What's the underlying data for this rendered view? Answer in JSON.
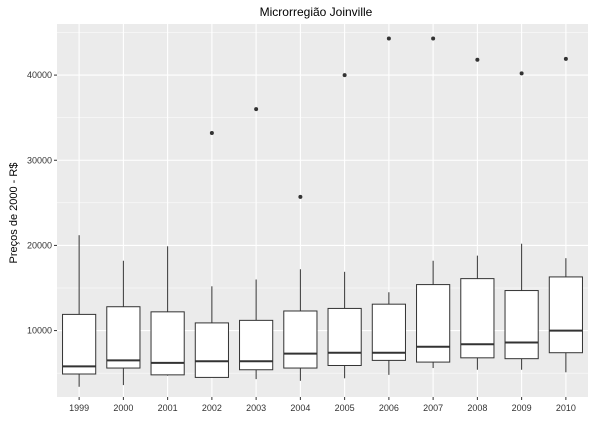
{
  "chart_data": {
    "type": "box",
    "title": "Microrregião  Joinville",
    "xlabel": "",
    "ylabel": "Preços de 2000 - R$",
    "ylim": [
      2200,
      46000
    ],
    "yticks": [
      10000,
      20000,
      30000,
      40000
    ],
    "grid": true,
    "panel_background": "#ebebeb",
    "grid_color": "#ffffff",
    "box_fill": "#ffffff",
    "line_color": "#333333",
    "categories": [
      "1999",
      "2000",
      "2001",
      "2002",
      "2003",
      "2004",
      "2005",
      "2006",
      "2007",
      "2008",
      "2009",
      "2010"
    ],
    "boxes": [
      {
        "lower_whisker": 3400,
        "q1": 4900,
        "median": 5800,
        "q3": 11900,
        "upper_whisker": 21200,
        "outliers": []
      },
      {
        "lower_whisker": 3600,
        "q1": 5600,
        "median": 6500,
        "q3": 12800,
        "upper_whisker": 18200,
        "outliers": []
      },
      {
        "lower_whisker": 4700,
        "q1": 4800,
        "median": 6200,
        "q3": 12200,
        "upper_whisker": 19900,
        "outliers": []
      },
      {
        "lower_whisker": 4500,
        "q1": 4500,
        "median": 6400,
        "q3": 10900,
        "upper_whisker": 15200,
        "outliers": [
          33200
        ]
      },
      {
        "lower_whisker": 4300,
        "q1": 5400,
        "median": 6400,
        "q3": 11200,
        "upper_whisker": 16000,
        "outliers": [
          36000
        ]
      },
      {
        "lower_whisker": 4100,
        "q1": 5600,
        "median": 7300,
        "q3": 12300,
        "upper_whisker": 17200,
        "outliers": [
          25700
        ]
      },
      {
        "lower_whisker": 4400,
        "q1": 5900,
        "median": 7400,
        "q3": 12600,
        "upper_whisker": 16900,
        "outliers": [
          40000
        ]
      },
      {
        "lower_whisker": 4800,
        "q1": 6500,
        "median": 7400,
        "q3": 13100,
        "upper_whisker": 14500,
        "outliers": [
          44300
        ]
      },
      {
        "lower_whisker": 5600,
        "q1": 6300,
        "median": 8100,
        "q3": 15400,
        "upper_whisker": 18200,
        "outliers": [
          44300
        ]
      },
      {
        "lower_whisker": 5400,
        "q1": 6800,
        "median": 8400,
        "q3": 16100,
        "upper_whisker": 18800,
        "outliers": [
          41800
        ]
      },
      {
        "lower_whisker": 5400,
        "q1": 6700,
        "median": 8600,
        "q3": 14700,
        "upper_whisker": 20200,
        "outliers": [
          40200
        ]
      },
      {
        "lower_whisker": 5100,
        "q1": 7400,
        "median": 10000,
        "q3": 16300,
        "upper_whisker": 18500,
        "outliers": [
          41900
        ]
      }
    ]
  }
}
